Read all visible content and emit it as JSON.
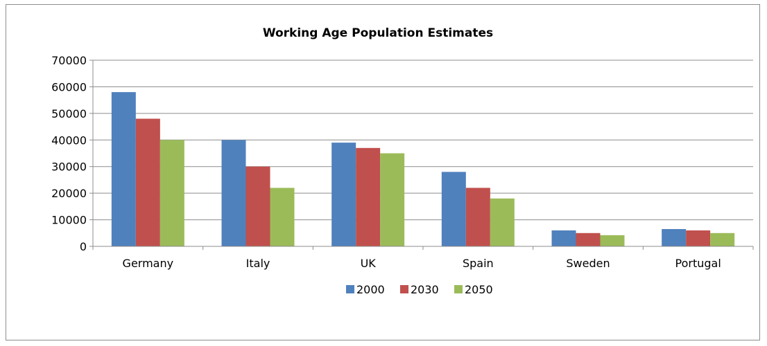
{
  "chart_data": {
    "type": "bar",
    "title": "Working Age Population Estimates",
    "categories": [
      "Germany",
      "Italy",
      "UK",
      "Spain",
      "Sweden",
      "Portugal"
    ],
    "series": [
      {
        "name": "2000",
        "color": "#4F81BD",
        "values": [
          58000,
          40000,
          39000,
          28000,
          6000,
          6500
        ]
      },
      {
        "name": "2030",
        "color": "#C0504D",
        "values": [
          48000,
          30000,
          37000,
          22000,
          5000,
          6000
        ]
      },
      {
        "name": "2050",
        "color": "#9BBB59",
        "values": [
          40000,
          22000,
          35000,
          18000,
          4200,
          5000
        ]
      }
    ],
    "ylim": [
      0,
      70000
    ],
    "yticks": [
      0,
      10000,
      20000,
      30000,
      40000,
      50000,
      60000,
      70000
    ],
    "grid": true,
    "legend_position": "bottom"
  }
}
